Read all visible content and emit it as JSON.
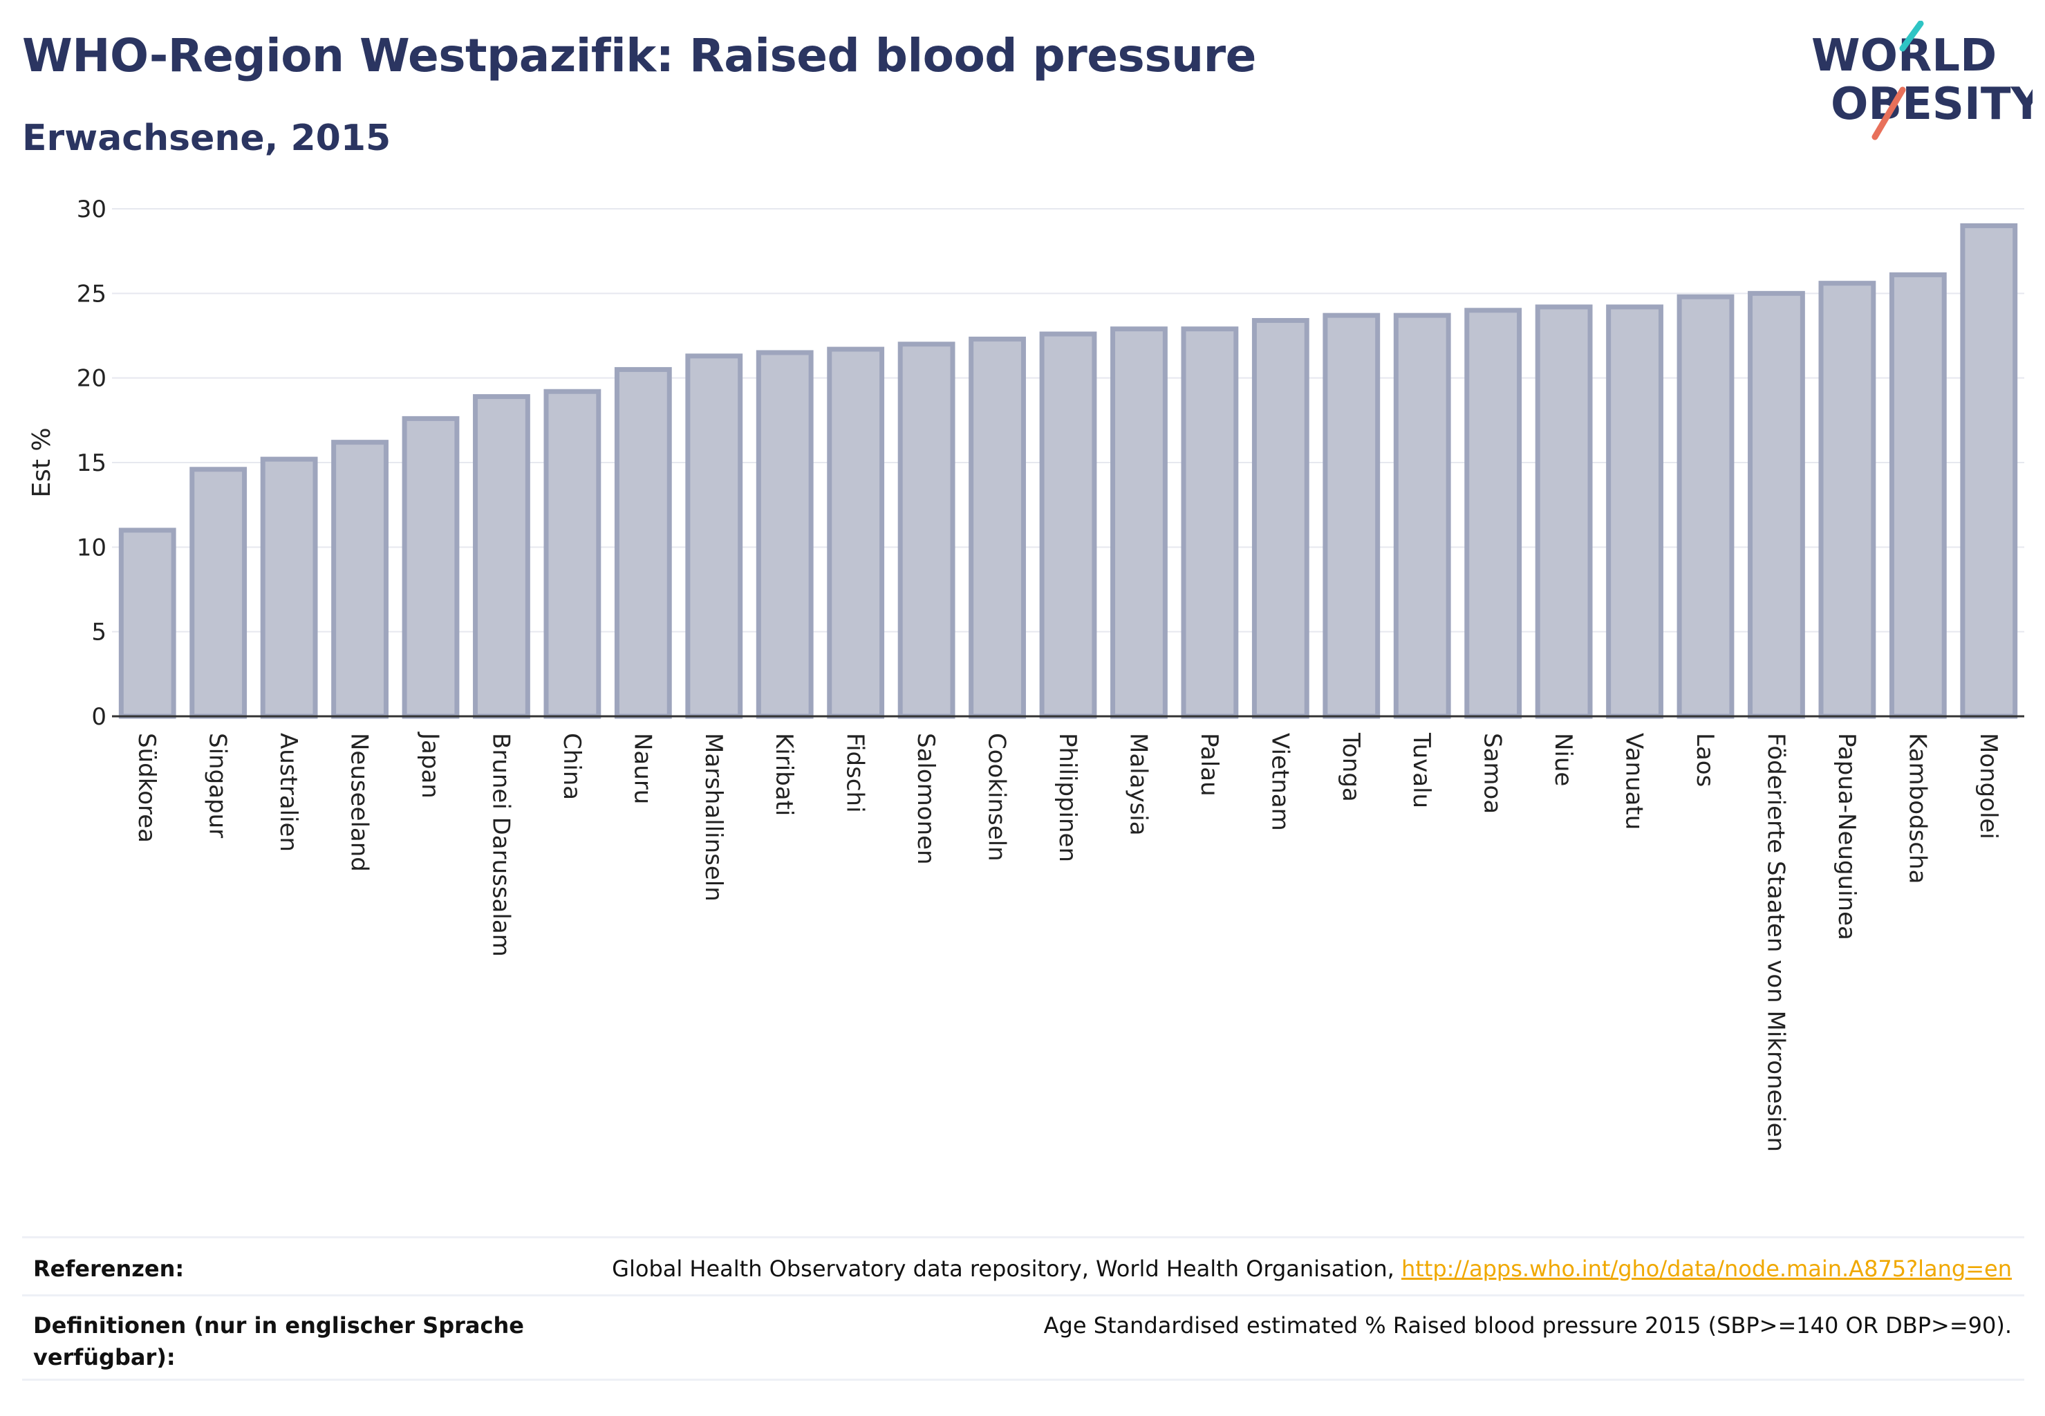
{
  "header": {
    "title": "WHO-Region Westpazifik: Raised blood pressure",
    "subtitle": "Erwachsene, 2015"
  },
  "logo": {
    "line1": "WORLD",
    "line2": "OBESITY",
    "slash_colors": [
      "#2ec4c4",
      "#e8705a"
    ],
    "text_color": "#2b3561"
  },
  "colors": {
    "bar_fill": "#bfc3d1",
    "bar_stroke": "#9ea5bd",
    "text": "#2b3561",
    "grid": "#e6e8ef",
    "link": "#f0a800"
  },
  "chart_data": {
    "type": "bar",
    "title": "WHO-Region Westpazifik: Raised blood pressure",
    "subtitle": "Erwachsene, 2015",
    "xlabel": "",
    "ylabel": "Est %",
    "ylim": [
      0,
      30
    ],
    "yticks": [
      0,
      5,
      10,
      15,
      20,
      25,
      30
    ],
    "grid": true,
    "categories": [
      "Südkorea",
      "Singapur",
      "Australien",
      "Neuseeland",
      "Japan",
      "Brunei Darussalam",
      "China",
      "Nauru",
      "Marshallinseln",
      "Kiribati",
      "Fidschi",
      "Salomonen",
      "Cookinseln",
      "Philippinen",
      "Malaysia",
      "Palau",
      "Vietnam",
      "Tonga",
      "Tuvalu",
      "Samoa",
      "Niue",
      "Vanuatu",
      "Laos",
      "Föderierte Staaten von Mikronesien",
      "Papua-Neuguinea",
      "Kambodscha",
      "Mongolei"
    ],
    "values": [
      11.0,
      14.6,
      15.2,
      16.2,
      17.6,
      18.9,
      19.2,
      20.5,
      21.3,
      21.5,
      21.7,
      22.0,
      22.3,
      22.6,
      22.9,
      22.9,
      23.4,
      23.7,
      23.7,
      24.0,
      24.2,
      24.2,
      24.8,
      25.0,
      25.6,
      26.1,
      29.0
    ]
  },
  "footer": {
    "references_label": "Referenzen:",
    "references_text": "Global Health Observatory data repository, World Health Organisation,",
    "references_link": "http://apps.who.int/gho/data/node.main.A875?lang=en",
    "definitions_label_line1": "Definitionen (nur in englischer Sprache",
    "definitions_label_line2": "verfügbar):",
    "definitions_text": "Age Standardised estimated % Raised blood pressure 2015 (SBP>=140 OR DBP>=90)."
  }
}
